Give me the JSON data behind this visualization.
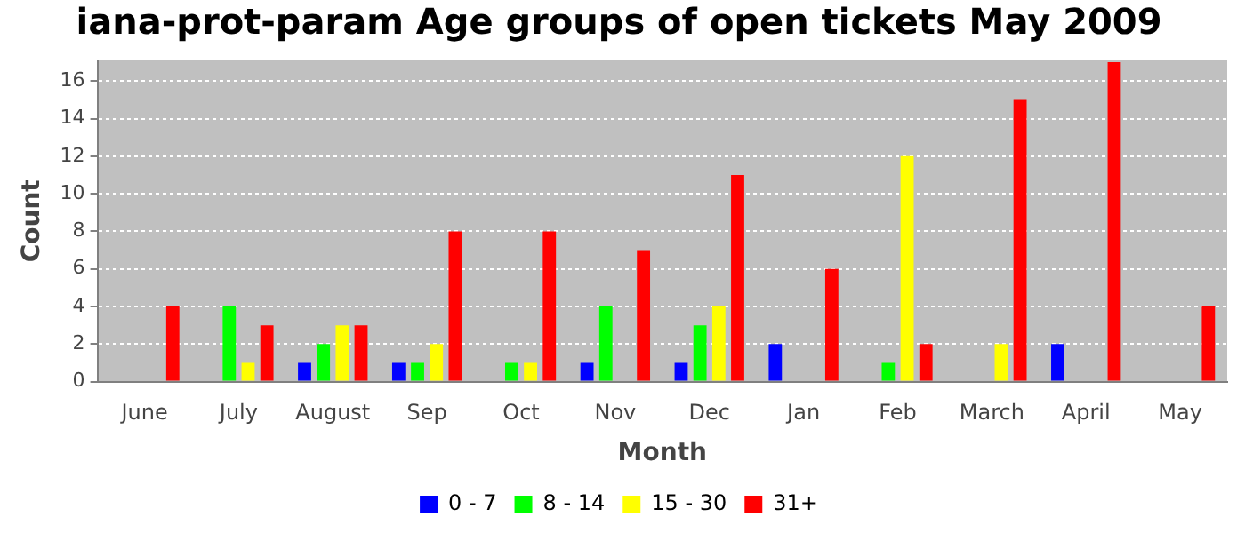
{
  "chart_data": {
    "type": "bar",
    "title": "iana-prot-param Age groups of open tickets May 2009",
    "xlabel": "Month",
    "ylabel": "Count",
    "categories": [
      "June",
      "July",
      "August",
      "Sep",
      "Oct",
      "Nov",
      "Dec",
      "Jan",
      "Feb",
      "March",
      "April",
      "May"
    ],
    "series": [
      {
        "name": "0 - 7",
        "color": "#0000ff",
        "values": [
          null,
          null,
          1,
          1,
          null,
          1,
          1,
          2,
          null,
          null,
          2,
          null
        ]
      },
      {
        "name": "8 - 14",
        "color": "#00ff00",
        "values": [
          null,
          4,
          2,
          1,
          1,
          4,
          3,
          null,
          1,
          null,
          null,
          null
        ]
      },
      {
        "name": "15 - 30",
        "color": "#ffff00",
        "values": [
          null,
          1,
          3,
          2,
          1,
          null,
          4,
          null,
          12,
          2,
          null,
          null
        ]
      },
      {
        "name": "31+",
        "color": "#ff0000",
        "values": [
          4,
          3,
          3,
          8,
          8,
          7,
          11,
          6,
          2,
          15,
          17,
          4
        ]
      }
    ],
    "ylim": [
      0,
      17.1
    ],
    "yticks": [
      0,
      2,
      4,
      6,
      8,
      10,
      12,
      14,
      16
    ],
    "grid": "y",
    "legend": "bottom"
  }
}
